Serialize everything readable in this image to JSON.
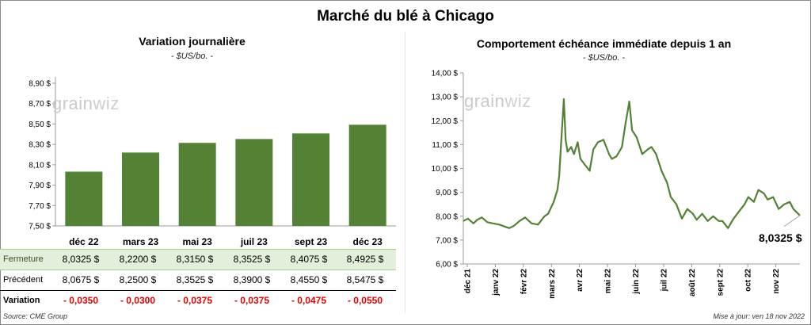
{
  "page": {
    "title": "Marché du blé à Chicago",
    "source": "Source: CME Group",
    "updated": "Mise à jour: ven 18 nov 2022",
    "watermark": "grainwiz"
  },
  "chart_data": [
    {
      "type": "bar",
      "title": "Variation journalière",
      "unit": "- $US/bo. -",
      "categories": [
        "déc 22",
        "mars 23",
        "mai 23",
        "juil 23",
        "sept 23",
        "déc 23"
      ],
      "values": [
        8.0325,
        8.22,
        8.315,
        8.3525,
        8.4075,
        8.4925
      ],
      "ylim": [
        7.5,
        8.9
      ],
      "yticks": [
        "8,90 $",
        "8,70 $",
        "8,50 $",
        "8,30 $",
        "8,10 $",
        "7,90 $",
        "7,70 $",
        "7,50 $"
      ],
      "yticks_values": [
        8.9,
        8.7,
        8.5,
        8.3,
        8.1,
        7.9,
        7.7,
        7.5
      ],
      "bar_color": "#548235"
    },
    {
      "type": "line",
      "title": "Comportement  échéance immédiate depuis 1 an",
      "unit": "- $US/bo. -",
      "ylim": [
        6.0,
        14.0
      ],
      "yticks": [
        "14,00 $",
        "13,00 $",
        "12,00 $",
        "11,00 $",
        "10,00 $",
        "9,00 $",
        "8,00 $",
        "7,00 $",
        "6,00 $"
      ],
      "yticks_values": [
        14,
        13,
        12,
        11,
        10,
        9,
        8,
        7,
        6
      ],
      "xticks": [
        "déc 21",
        "janv 22",
        "févr 22",
        "mars 22",
        "avr 22",
        "mai 22",
        "juin 22",
        "juil 22",
        "août 22",
        "sept 22",
        "oct 22",
        "nov 22"
      ],
      "x_range": [
        "2021-11-18",
        "2022-11-18"
      ],
      "last_value_label": "8,0325 $",
      "line_color": "#548235",
      "series": [
        {
          "x": [
            "2021-11-18",
            "2021-11-23",
            "2021-11-29",
            "2021-12-03",
            "2021-12-08",
            "2021-12-14",
            "2021-12-20",
            "2021-12-27",
            "2022-01-03",
            "2022-01-07",
            "2022-01-12",
            "2022-01-18",
            "2022-01-24",
            "2022-01-31",
            "2022-02-07",
            "2022-02-14",
            "2022-02-18",
            "2022-02-24",
            "2022-02-28",
            "2022-03-02",
            "2022-03-04",
            "2022-03-07",
            "2022-03-09",
            "2022-03-11",
            "2022-03-15",
            "2022-03-18",
            "2022-03-22",
            "2022-03-25",
            "2022-03-29",
            "2022-04-04",
            "2022-04-08",
            "2022-04-13",
            "2022-04-19",
            "2022-04-25",
            "2022-04-28",
            "2022-05-03",
            "2022-05-09",
            "2022-05-13",
            "2022-05-17",
            "2022-05-20",
            "2022-05-25",
            "2022-05-31",
            "2022-06-06",
            "2022-06-10",
            "2022-06-15",
            "2022-06-21",
            "2022-06-27",
            "2022-07-01",
            "2022-07-07",
            "2022-07-13",
            "2022-07-19",
            "2022-07-25",
            "2022-07-29",
            "2022-08-04",
            "2022-08-10",
            "2022-08-16",
            "2022-08-22",
            "2022-08-26",
            "2022-09-01",
            "2022-09-07",
            "2022-09-13",
            "2022-09-19",
            "2022-09-23",
            "2022-09-29",
            "2022-10-04",
            "2022-10-10",
            "2022-10-14",
            "2022-10-20",
            "2022-10-26",
            "2022-11-01",
            "2022-11-07",
            "2022-11-11",
            "2022-11-18"
          ],
          "y": [
            7.8,
            7.9,
            7.7,
            7.85,
            7.95,
            7.75,
            7.7,
            7.65,
            7.55,
            7.5,
            7.6,
            7.8,
            7.95,
            7.7,
            7.65,
            8.0,
            8.1,
            8.6,
            9.1,
            9.7,
            11.0,
            12.9,
            11.2,
            10.7,
            10.9,
            10.6,
            11.1,
            10.4,
            10.2,
            9.9,
            10.8,
            11.1,
            11.2,
            10.6,
            10.4,
            10.5,
            10.9,
            11.9,
            12.8,
            11.6,
            11.3,
            10.6,
            10.8,
            10.9,
            10.6,
            9.9,
            9.4,
            8.8,
            8.5,
            7.9,
            8.3,
            8.1,
            7.85,
            8.1,
            7.8,
            8.0,
            7.8,
            7.8,
            7.5,
            7.9,
            8.2,
            8.5,
            8.8,
            8.6,
            9.1,
            8.95,
            8.7,
            8.8,
            8.3,
            8.5,
            8.6,
            8.3,
            8.0325
          ]
        }
      ]
    }
  ],
  "table": {
    "rows": [
      {
        "label": "Fermeture",
        "cells": [
          "8,0325  $",
          "8,2200  $",
          "8,3150  $",
          "8,3525  $",
          "8,4075  $",
          "8,4925  $"
        ]
      },
      {
        "label": "Précédent",
        "cells": [
          "8,0675  $",
          "8,2500  $",
          "8,3525  $",
          "8,3900  $",
          "8,4550  $",
          "8,5475  $"
        ]
      },
      {
        "label": "Variation",
        "cells": [
          "- 0,0350",
          "- 0,0300",
          "- 0,0375",
          "- 0,0375",
          "- 0,0475",
          "- 0,0550"
        ]
      }
    ]
  }
}
